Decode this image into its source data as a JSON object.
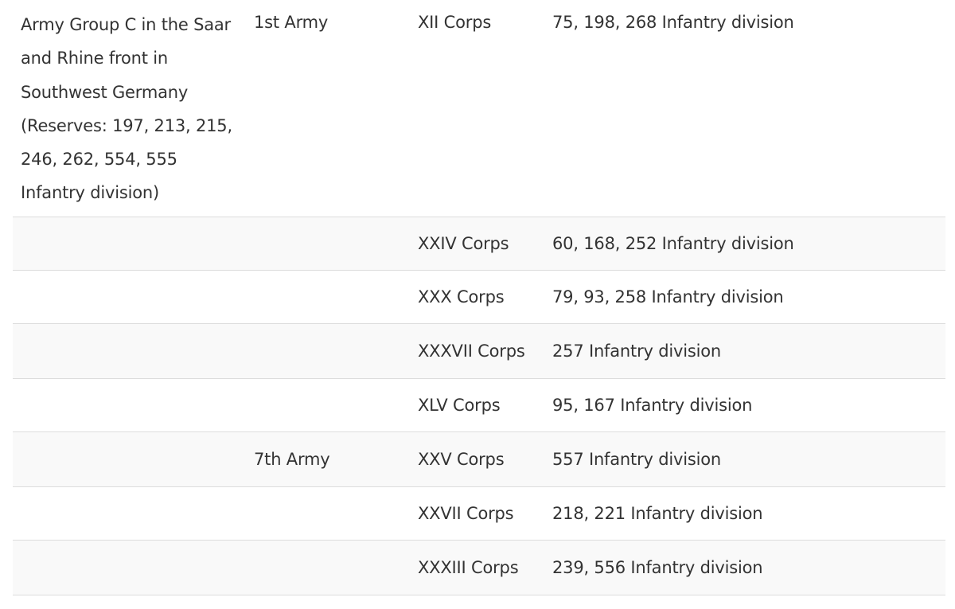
{
  "table": {
    "rows": [
      {
        "group": "Army Group C in the Saar and Rhine front in Southwest Germany (Reserves: 197, 213, 215, 246, 262, 554, 555 Infantry division)",
        "army": "1st Army",
        "corps": "XII Corps",
        "divisions": "75, 198, 268 Infantry division"
      },
      {
        "group": "",
        "army": "",
        "corps": "XXIV Corps",
        "divisions": "60, 168, 252 Infantry division"
      },
      {
        "group": "",
        "army": "",
        "corps": "XXX Corps",
        "divisions": "79, 93, 258 Infantry division"
      },
      {
        "group": "",
        "army": "",
        "corps": "XXXVII Corps",
        "divisions": "257 Infantry division"
      },
      {
        "group": "",
        "army": "",
        "corps": "XLV Corps",
        "divisions": "95, 167 Infantry division"
      },
      {
        "group": "",
        "army": "7th Army",
        "corps": "XXV Corps",
        "divisions": "557 Infantry division"
      },
      {
        "group": "",
        "army": "",
        "corps": "XXVII Corps",
        "divisions": "218, 221 Infantry division"
      },
      {
        "group": "",
        "army": "",
        "corps": "XXXIII Corps",
        "divisions": "239, 556 Infantry division"
      }
    ]
  }
}
